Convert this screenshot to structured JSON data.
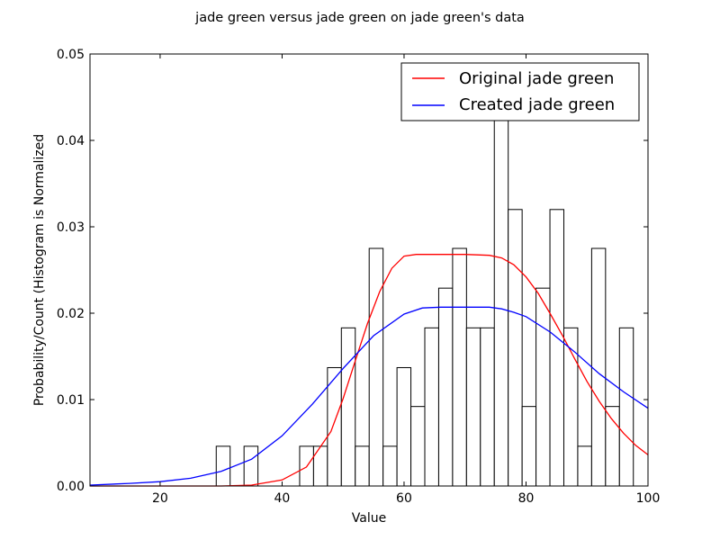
{
  "chart_data": {
    "type": "histogram_with_lines",
    "title": "jade green versus jade green on jade green's data",
    "xlabel": "Value",
    "ylabel": "Probability/Count (Histogram is Normalized",
    "xlim": [
      8.5,
      100
    ],
    "ylim": [
      0,
      0.05
    ],
    "xticks": [
      20,
      40,
      60,
      80,
      100
    ],
    "yticks": [
      0.0,
      0.01,
      0.02,
      0.03,
      0.04,
      0.05
    ],
    "ytick_labels": [
      "0.00",
      "0.01",
      "0.02",
      "0.03",
      "0.04",
      "0.05"
    ],
    "legend_position": "top-right",
    "histogram": {
      "bin_start": 29.2,
      "bin_width": 2.28,
      "bin_color": "#ffffff",
      "edge_color": "#000000",
      "values": [
        0.0046,
        0,
        0.0046,
        0,
        0,
        0,
        0.0046,
        0.0046,
        0.0137,
        0.0183,
        0.0046,
        0.0275,
        0.0046,
        0.0137,
        0.0092,
        0.0183,
        0.0229,
        0.0275,
        0.0183,
        0.0183,
        0.0435,
        0.032,
        0.0092,
        0.0229,
        0.032,
        0.0183,
        0.0046,
        0.0275,
        0.0092,
        0.0183
      ]
    },
    "series": [
      {
        "name": "Original jade green",
        "color": "#ff0000",
        "x": [
          8.5,
          20,
          30,
          35,
          40,
          44,
          48,
          50,
          52,
          54,
          56,
          58,
          60,
          62,
          64,
          66,
          70,
          74,
          76,
          78,
          80,
          82,
          84,
          86,
          88,
          90,
          92,
          94,
          96,
          98,
          100
        ],
        "values": [
          0.0,
          0.0,
          0.0,
          0.0001,
          0.0007,
          0.0022,
          0.0063,
          0.0101,
          0.0145,
          0.0188,
          0.0225,
          0.0252,
          0.0266,
          0.0268,
          0.0268,
          0.0268,
          0.0268,
          0.0267,
          0.0264,
          0.0256,
          0.0242,
          0.0223,
          0.0199,
          0.0174,
          0.0147,
          0.0121,
          0.0098,
          0.0078,
          0.0061,
          0.0047,
          0.0036
        ]
      },
      {
        "name": "Created jade green",
        "color": "#0000ff",
        "x": [
          8.5,
          15,
          20,
          25,
          30,
          35,
          40,
          45,
          50,
          55,
          60,
          63,
          66,
          70,
          74,
          76,
          78,
          80,
          84,
          88,
          92,
          96,
          100
        ],
        "values": [
          0.0001,
          0.0003,
          0.0005,
          0.0009,
          0.0017,
          0.0031,
          0.0058,
          0.0095,
          0.0136,
          0.0174,
          0.0199,
          0.0206,
          0.0207,
          0.0207,
          0.0207,
          0.0205,
          0.0201,
          0.0196,
          0.0178,
          0.0155,
          0.013,
          0.0109,
          0.009
        ]
      }
    ]
  }
}
